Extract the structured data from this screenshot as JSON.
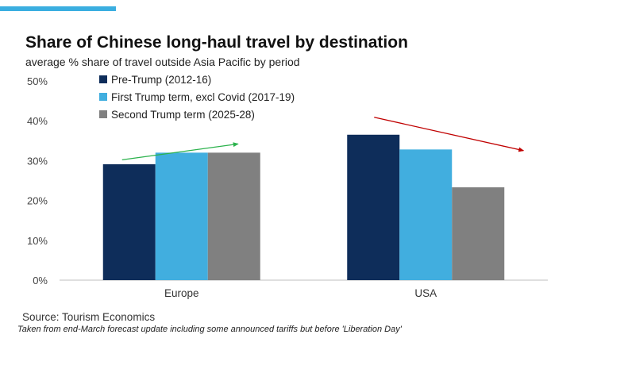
{
  "header": {
    "title": "Share of Chinese long-haul travel by destination",
    "subtitle": "average % share of travel outside Asia Pacific by period"
  },
  "footer": {
    "source": "Source: Tourism Economics",
    "note": "Taken from end-March forecast update including some announced tariffs but before 'Liberation Day'"
  },
  "colors": {
    "accent": "#3aaee0",
    "pre_trump": "#0e2d5a",
    "first_term": "#41aedf",
    "second_term": "#808080",
    "arrow_up": "#2bb24c",
    "arrow_down": "#c00000"
  },
  "chart_data": {
    "type": "bar",
    "categories": [
      "Europe",
      "USA"
    ],
    "series": [
      {
        "name": "Pre-Trump (2012-16)",
        "values": [
          29.1,
          36.5
        ]
      },
      {
        "name": "First Trump term, excl Covid (2017-19)",
        "values": [
          32.0,
          32.8
        ]
      },
      {
        "name": "Second Trump term (2025-28)",
        "values": [
          32.0,
          23.3
        ]
      }
    ],
    "ylim": [
      0,
      50
    ],
    "yticks": [
      0,
      10,
      20,
      30,
      40,
      50
    ],
    "ytick_labels": [
      "0%",
      "10%",
      "20%",
      "30%",
      "40%",
      "50%"
    ],
    "xlabel": "",
    "ylabel": "",
    "grid": false,
    "legend_position": "top-left",
    "annotations": [
      {
        "type": "trend-arrow",
        "category": "Europe",
        "direction": "up"
      },
      {
        "type": "trend-arrow",
        "category": "USA",
        "direction": "down"
      }
    ]
  }
}
